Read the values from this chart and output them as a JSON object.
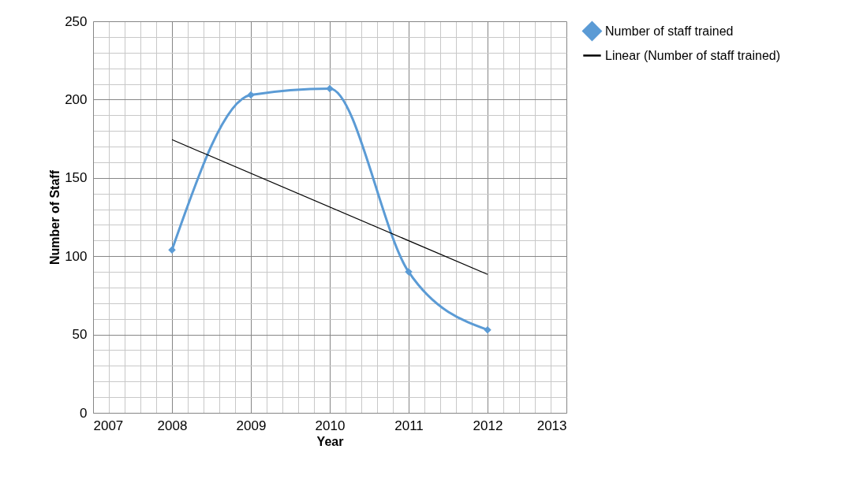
{
  "chart_data": {
    "type": "line",
    "xlabel": "Year",
    "ylabel": "Number of Staff",
    "xlim": [
      2007,
      2013
    ],
    "xticks": [
      2007,
      {
        "value": 2007.2,
        "label": null
      },
      {
        "value": 2007.4,
        "label": null
      },
      {
        "value": 2007.6,
        "label": null
      },
      {
        "value": 2007.8,
        "label": null
      },
      2008,
      {
        "value": 2008.2,
        "label": null
      },
      {
        "value": 2008.4,
        "label": null
      },
      {
        "value": 2008.6,
        "label": null
      },
      {
        "value": 2008.8,
        "label": null
      },
      2009,
      {
        "value": 2009.2,
        "label": null
      },
      {
        "value": 2009.4,
        "label": null
      },
      {
        "value": 2009.6,
        "label": null
      },
      {
        "value": 2009.8,
        "label": null
      },
      2010,
      {
        "value": 2010.2,
        "label": null
      },
      {
        "value": 2010.4,
        "label": null
      },
      {
        "value": 2010.6,
        "label": null
      },
      {
        "value": 2010.8,
        "label": null
      },
      2011,
      {
        "value": 2011.2,
        "label": null
      },
      {
        "value": 2011.4,
        "label": null
      },
      {
        "value": 2011.6,
        "label": null
      },
      {
        "value": 2011.8,
        "label": null
      },
      2012,
      {
        "value": 2012.2,
        "label": null
      },
      {
        "value": 2012.4,
        "label": null
      },
      {
        "value": 2012.6,
        "label": null
      },
      {
        "value": 2012.8,
        "label": null
      },
      2013
    ],
    "ylim": [
      0,
      250
    ],
    "yticks": [
      0,
      {
        "value": 10,
        "label": null
      },
      {
        "value": 20,
        "label": null
      },
      {
        "value": 30,
        "label": null
      },
      {
        "value": 40,
        "label": null
      },
      50,
      {
        "value": 60,
        "label": null
      },
      {
        "value": 70,
        "label": null
      },
      {
        "value": 80,
        "label": null
      },
      {
        "value": 90,
        "label": null
      },
      100,
      {
        "value": 110,
        "label": null
      },
      {
        "value": 120,
        "label": null
      },
      {
        "value": 130,
        "label": null
      },
      {
        "value": 140,
        "label": null
      },
      150,
      {
        "value": 160,
        "label": null
      },
      {
        "value": 170,
        "label": null
      },
      {
        "value": 180,
        "label": null
      },
      {
        "value": 190,
        "label": null
      },
      200,
      {
        "value": 210,
        "label": null
      },
      {
        "value": 220,
        "label": null
      },
      {
        "value": 230,
        "label": null
      },
      {
        "value": 240,
        "label": null
      },
      250
    ],
    "grid": true,
    "legend": "right",
    "series": [
      {
        "name": "Number of staff trained",
        "color": "#5b9bd5",
        "x": [
          2008,
          2009,
          2010,
          2011,
          2012
        ],
        "values": [
          104,
          203,
          207,
          90,
          53
        ],
        "marker": "diamond"
      },
      {
        "name": "Linear (Number of staff trained)",
        "color": "#000000",
        "x": [
          2008,
          2012
        ],
        "values": [
          174.4,
          88.4
        ],
        "marker": "none"
      }
    ]
  }
}
